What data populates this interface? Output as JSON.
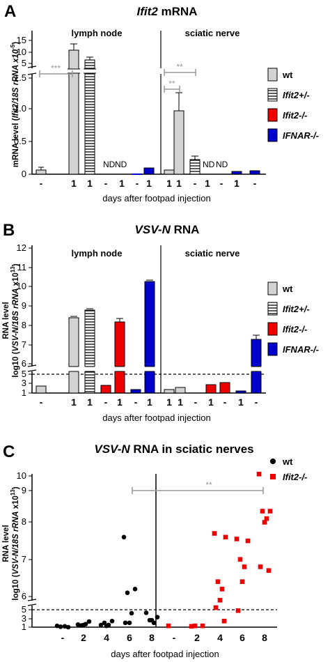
{
  "panels": [
    {
      "letter": "A",
      "title_italic": "Ifit2",
      "title_rest": " mRNA",
      "ylabel_1": "mRNA level (",
      "ylabel_italic": "Ifit2/18S rRNA x10",
      "ylabel_sup": "-5",
      "ylabel_end": ")",
      "xlabel": "days after footpad injection",
      "section_left": "lymph node",
      "section_right": "sciatic nerve",
      "nd_label": "ND"
    },
    {
      "letter": "B",
      "title_italic": "VSV-N",
      "title_rest": " RNA",
      "ylabel_1": "RNA level",
      "ylabel_2": "log10 (",
      "ylabel_italic": "VSV-N/18S rRNA",
      "ylabel_end": " x10",
      "ylabel_sup": "13",
      "ylabel_close": ")",
      "xlabel": "days after footpad injection",
      "section_left": "lymph node",
      "section_right": "sciatic nerve"
    },
    {
      "letter": "C",
      "title_italic": "VSV-N",
      "title_rest": " RNA in sciatic nerves",
      "ylabel_1": "RNA level",
      "ylabel_2": "log10 (",
      "ylabel_italic": "VSV-N/18S rRNA",
      "ylabel_end": " x10",
      "ylabel_sup": "13",
      "ylabel_close": ")",
      "xlabel": "days after footpad injection",
      "sig": "**"
    }
  ],
  "legend_ab": [
    {
      "label": "wt",
      "italic": false,
      "fill": "#d3d3d3",
      "hatch": false
    },
    {
      "label": "Ifit2+/-",
      "italic": true,
      "fill": "#ffffff",
      "hatch": true
    },
    {
      "label": "Ifit2-/-",
      "italic": true,
      "fill": "#ee0000",
      "hatch": false
    },
    {
      "label": "IFNAR-/-",
      "italic": true,
      "fill": "#0000cc",
      "hatch": false
    }
  ],
  "legend_c": [
    {
      "label": "wt",
      "italic": false,
      "color": "#000000",
      "shape": "circle"
    },
    {
      "label": "Ifit2-/-",
      "italic": true,
      "color": "#ee0000",
      "shape": "square"
    }
  ],
  "colors": {
    "wt": "#d3d3d3",
    "het": "#ffffff",
    "ko": "#ee0000",
    "ifnar": "#0000cc",
    "sig": "#999999"
  },
  "chart_data": [
    {
      "type": "bar",
      "panel": "A",
      "title": "Ifit2 mRNA",
      "ylabel": "mRNA level (Ifit2/18S rRNA x10-5)",
      "xlabel": "days after footpad injection",
      "axis_break": true,
      "yticks_lower": [
        "0",
        "0.5",
        "1.0",
        "1.5"
      ],
      "yticks_upper": [
        "5",
        "10",
        "15"
      ],
      "categories": [
        "-",
        "1",
        "1",
        "-",
        "1",
        "-",
        "1",
        "-",
        "1",
        "1",
        "-",
        "1",
        "-",
        "1",
        "-",
        "1"
      ],
      "tissue": [
        "lymph node",
        "lymph node",
        "lymph node",
        "lymph node",
        "lymph node",
        "lymph node",
        "lymph node",
        "lymph node",
        "sciatic nerve",
        "sciatic nerve",
        "sciatic nerve",
        "sciatic nerve",
        "sciatic nerve",
        "sciatic nerve",
        "sciatic nerve",
        "sciatic nerve"
      ],
      "series": [
        {
          "name": "wt",
          "values": [
            0.03,
            12.5,
            null,
            null,
            null,
            null,
            null,
            null,
            0.05,
            0.98,
            null,
            null,
            null,
            null,
            null,
            null
          ],
          "errors": [
            0.02,
            1.4,
            null,
            null,
            null,
            null,
            null,
            null,
            0.01,
            0.28,
            null,
            null,
            null,
            null,
            null,
            null
          ]
        },
        {
          "name": "Ifit2+/-",
          "values": [
            null,
            null,
            8.0,
            null,
            null,
            null,
            null,
            null,
            null,
            null,
            0.21,
            null,
            null,
            null,
            null,
            null
          ],
          "errors": [
            null,
            null,
            0.8,
            null,
            null,
            null,
            null,
            null,
            null,
            null,
            0.04,
            null,
            null,
            null,
            null,
            null
          ]
        },
        {
          "name": "Ifit2-/-",
          "values": [
            null,
            null,
            null,
            0,
            0,
            null,
            null,
            null,
            null,
            null,
            null,
            0,
            0,
            null,
            null,
            null
          ],
          "errors": [
            null,
            null,
            null,
            0,
            0,
            null,
            null,
            null,
            null,
            null,
            null,
            0,
            0,
            null,
            null,
            null
          ],
          "annotations": [
            "ND",
            "ND"
          ]
        },
        {
          "name": "IFNAR-/-",
          "values": [
            null,
            null,
            null,
            null,
            null,
            0.005,
            0.07,
            null,
            null,
            null,
            null,
            null,
            null,
            0.03,
            0.05,
            null
          ],
          "errors": [
            null,
            null,
            null,
            null,
            null,
            0.002,
            0.01,
            null,
            null,
            null,
            null,
            null,
            null,
            0.005,
            0.01,
            null
          ]
        }
      ],
      "significance": [
        {
          "label": "***",
          "groups": [
            "lymph node - wt",
            "lymph node 1 wt"
          ]
        },
        {
          "label": "**",
          "groups": [
            "sciatic nerve - wt",
            "sciatic nerve 1 wt"
          ]
        },
        {
          "label": "**",
          "groups": [
            "sciatic nerve - wt",
            "sciatic nerve 1 Ifit2+/-"
          ]
        }
      ]
    },
    {
      "type": "bar",
      "panel": "B",
      "title": "VSV-N RNA",
      "ylabel": "RNA level log10 (VSV-N/18S rRNA x1013)",
      "xlabel": "days after footpad injection",
      "axis_break": true,
      "yticks_lower": [
        "1",
        "3",
        "5"
      ],
      "yticks_upper": [
        "6",
        "7",
        "8",
        "9",
        "10",
        "11",
        "12"
      ],
      "detection_limit": 5,
      "series": [
        {
          "name": "wt",
          "values": [
            1.7,
            8.4,
            null,
            null,
            null,
            null,
            null,
            null,
            1.6,
            1.95,
            null,
            null,
            null,
            null,
            null,
            null
          ],
          "errors": [
            0.1,
            0.08,
            null,
            null,
            null,
            null,
            null,
            null,
            0.05,
            0.1,
            null,
            null,
            null,
            null,
            null,
            null
          ]
        },
        {
          "name": "Ifit2+/-",
          "values": [
            null,
            null,
            8.8,
            null,
            null,
            null,
            null,
            null,
            null,
            null,
            1.0,
            null,
            null,
            null,
            null,
            null
          ],
          "errors": [
            null,
            null,
            0.08,
            null,
            null,
            null,
            null,
            null,
            null,
            null,
            0,
            null,
            null,
            null,
            null,
            null
          ]
        },
        {
          "name": "Ifit2-/-",
          "values": [
            null,
            null,
            null,
            2.0,
            8.2,
            null,
            null,
            null,
            null,
            null,
            null,
            2.5,
            2.9,
            null,
            null,
            null
          ],
          "errors": [
            null,
            null,
            null,
            0.1,
            0.15,
            null,
            null,
            null,
            null,
            null,
            null,
            0.15,
            0.2,
            null,
            null,
            null
          ]
        },
        {
          "name": "IFNAR-/-",
          "values": [
            null,
            null,
            null,
            null,
            null,
            1.4,
            10.35,
            null,
            null,
            null,
            null,
            null,
            null,
            1.35,
            7.15,
            null
          ],
          "errors": [
            null,
            null,
            null,
            null,
            null,
            0.05,
            0.1,
            null,
            null,
            null,
            null,
            null,
            null,
            0.1,
            0.2,
            null
          ]
        }
      ]
    },
    {
      "type": "scatter",
      "panel": "C",
      "title": "VSV-N RNA in sciatic nerves",
      "ylabel": "RNA level log10 (VSV-N/18S rRNA x1013)",
      "xlabel": "days after footpad injection",
      "x_categories": [
        "-",
        "2",
        "4",
        "6",
        "8"
      ],
      "yticks_lower": [
        "1",
        "3",
        "5"
      ],
      "yticks_upper": [
        "6",
        "7",
        "8",
        "9",
        "10"
      ],
      "detection_limit": 5,
      "series": [
        {
          "name": "wt",
          "points": [
            {
              "x": "-",
              "y": 1.3
            },
            {
              "x": "-",
              "y": 1.0
            },
            {
              "x": "-",
              "y": 1.1
            },
            {
              "x": "-",
              "y": 1.2
            },
            {
              "x": "2",
              "y": 1.6
            },
            {
              "x": "2",
              "y": 2.3
            },
            {
              "x": "2",
              "y": 1.4
            },
            {
              "x": "2",
              "y": 1.7
            },
            {
              "x": "2",
              "y": 1.5
            },
            {
              "x": "4",
              "y": 1.5
            },
            {
              "x": "4",
              "y": 2.4
            },
            {
              "x": "4",
              "y": 2.0
            },
            {
              "x": "4",
              "y": 1.5
            },
            {
              "x": "4",
              "y": 1.3
            },
            {
              "x": "6",
              "y": 7.6
            },
            {
              "x": "6",
              "y": 6.2
            },
            {
              "x": "6",
              "y": 6.1
            },
            {
              "x": "6",
              "y": 4.2
            },
            {
              "x": "6",
              "y": 2.0
            },
            {
              "x": "6",
              "y": 2.0
            },
            {
              "x": "8",
              "y": 4.3
            },
            {
              "x": "8",
              "y": 3.3
            },
            {
              "x": "8",
              "y": 2.6
            },
            {
              "x": "8",
              "y": 2.0
            },
            {
              "x": "8",
              "y": 2.6
            }
          ]
        },
        {
          "name": "Ifit2-/-",
          "points": [
            {
              "x": "-",
              "y": 1.3
            },
            {
              "x": "2",
              "y": 1.2
            },
            {
              "x": "2",
              "y": 1.3
            },
            {
              "x": "2",
              "y": 1.3
            },
            {
              "x": "4",
              "y": 7.7
            },
            {
              "x": "4",
              "y": 7.6
            },
            {
              "x": "4",
              "y": 6.4
            },
            {
              "x": "4",
              "y": 6.2
            },
            {
              "x": "4",
              "y": 5.9
            },
            {
              "x": "4",
              "y": 5.7
            },
            {
              "x": "4",
              "y": 2.4
            },
            {
              "x": "6",
              "y": 7.55
            },
            {
              "x": "6",
              "y": 7.5
            },
            {
              "x": "6",
              "y": 7.0
            },
            {
              "x": "6",
              "y": 6.8
            },
            {
              "x": "6",
              "y": 6.4
            },
            {
              "x": "6",
              "y": 4.8
            },
            {
              "x": "8",
              "y": 9.3
            },
            {
              "x": "8",
              "y": 8.3
            },
            {
              "x": "8",
              "y": 8.3
            },
            {
              "x": "8",
              "y": 8.1
            },
            {
              "x": "8",
              "y": 8.0
            },
            {
              "x": "8",
              "y": 6.8
            },
            {
              "x": "8",
              "y": 6.7
            }
          ]
        }
      ],
      "significance": [
        {
          "label": "**",
          "from": "-",
          "to": "8"
        }
      ]
    }
  ]
}
